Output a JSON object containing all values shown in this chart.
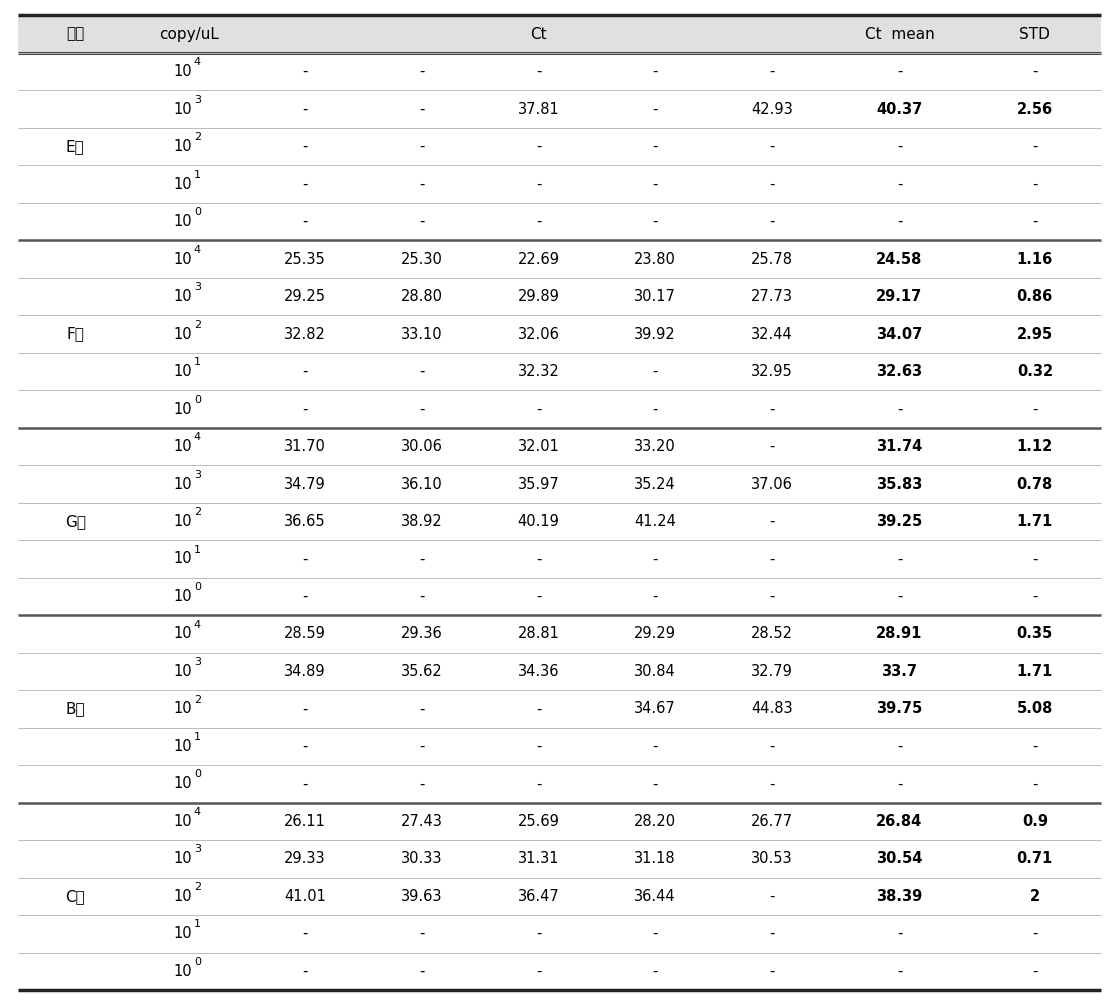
{
  "rows": [
    {
      "company": "E사",
      "copy_base": "10",
      "copy_exp": "4",
      "ct": [
        "-",
        "-",
        "-",
        "-",
        "-"
      ],
      "mean": "-",
      "std": "-",
      "bold": false
    },
    {
      "company": "E사",
      "copy_base": "10",
      "copy_exp": "3",
      "ct": [
        "-",
        "-",
        "37.81",
        "-",
        "42.93"
      ],
      "mean": "40.37",
      "std": "2.56",
      "bold": true
    },
    {
      "company": "E사",
      "copy_base": "10",
      "copy_exp": "2",
      "ct": [
        "-",
        "-",
        "-",
        "-",
        "-"
      ],
      "mean": "-",
      "std": "-",
      "bold": false
    },
    {
      "company": "E사",
      "copy_base": "10",
      "copy_exp": "1",
      "ct": [
        "-",
        "-",
        "-",
        "-",
        "-"
      ],
      "mean": "-",
      "std": "-",
      "bold": false
    },
    {
      "company": "E사",
      "copy_base": "10",
      "copy_exp": "0",
      "ct": [
        "-",
        "-",
        "-",
        "-",
        "-"
      ],
      "mean": "-",
      "std": "-",
      "bold": false
    },
    {
      "company": "F사",
      "copy_base": "10",
      "copy_exp": "4",
      "ct": [
        "25.35",
        "25.30",
        "22.69",
        "23.80",
        "25.78"
      ],
      "mean": "24.58",
      "std": "1.16",
      "bold": true
    },
    {
      "company": "F사",
      "copy_base": "10",
      "copy_exp": "3",
      "ct": [
        "29.25",
        "28.80",
        "29.89",
        "30.17",
        "27.73"
      ],
      "mean": "29.17",
      "std": "0.86",
      "bold": true
    },
    {
      "company": "F사",
      "copy_base": "10",
      "copy_exp": "2",
      "ct": [
        "32.82",
        "33.10",
        "32.06",
        "39.92",
        "32.44"
      ],
      "mean": "34.07",
      "std": "2.95",
      "bold": true
    },
    {
      "company": "F사",
      "copy_base": "10",
      "copy_exp": "1",
      "ct": [
        "-",
        "-",
        "32.32",
        "-",
        "32.95"
      ],
      "mean": "32.63",
      "std": "0.32",
      "bold": true
    },
    {
      "company": "F사",
      "copy_base": "10",
      "copy_exp": "0",
      "ct": [
        "-",
        "-",
        "-",
        "-",
        "-"
      ],
      "mean": "-",
      "std": "-",
      "bold": false
    },
    {
      "company": "G사",
      "copy_base": "10",
      "copy_exp": "4",
      "ct": [
        "31.70",
        "30.06",
        "32.01",
        "33.20",
        "-"
      ],
      "mean": "31.74",
      "std": "1.12",
      "bold": true
    },
    {
      "company": "G사",
      "copy_base": "10",
      "copy_exp": "3",
      "ct": [
        "34.79",
        "36.10",
        "35.97",
        "35.24",
        "37.06"
      ],
      "mean": "35.83",
      "std": "0.78",
      "bold": true
    },
    {
      "company": "G사",
      "copy_base": "10",
      "copy_exp": "2",
      "ct": [
        "36.65",
        "38.92",
        "40.19",
        "41.24",
        "-"
      ],
      "mean": "39.25",
      "std": "1.71",
      "bold": true
    },
    {
      "company": "G사",
      "copy_base": "10",
      "copy_exp": "1",
      "ct": [
        "-",
        "-",
        "-",
        "-",
        "-"
      ],
      "mean": "-",
      "std": "-",
      "bold": false
    },
    {
      "company": "G사",
      "copy_base": "10",
      "copy_exp": "0",
      "ct": [
        "-",
        "-",
        "-",
        "-",
        "-"
      ],
      "mean": "-",
      "std": "-",
      "bold": false
    },
    {
      "company": "B사",
      "copy_base": "10",
      "copy_exp": "4",
      "ct": [
        "28.59",
        "29.36",
        "28.81",
        "29.29",
        "28.52"
      ],
      "mean": "28.91",
      "std": "0.35",
      "bold": true
    },
    {
      "company": "B사",
      "copy_base": "10",
      "copy_exp": "3",
      "ct": [
        "34.89",
        "35.62",
        "34.36",
        "30.84",
        "32.79"
      ],
      "mean": "33.7",
      "std": "1.71",
      "bold": true
    },
    {
      "company": "B사",
      "copy_base": "10",
      "copy_exp": "2",
      "ct": [
        "-",
        "-",
        "-",
        "34.67",
        "44.83"
      ],
      "mean": "39.75",
      "std": "5.08",
      "bold": true
    },
    {
      "company": "B사",
      "copy_base": "10",
      "copy_exp": "1",
      "ct": [
        "-",
        "-",
        "-",
        "-",
        "-"
      ],
      "mean": "-",
      "std": "-",
      "bold": false
    },
    {
      "company": "B사",
      "copy_base": "10",
      "copy_exp": "0",
      "ct": [
        "-",
        "-",
        "-",
        "-",
        "-"
      ],
      "mean": "-",
      "std": "-",
      "bold": false
    },
    {
      "company": "C사",
      "copy_base": "10",
      "copy_exp": "4",
      "ct": [
        "26.11",
        "27.43",
        "25.69",
        "28.20",
        "26.77"
      ],
      "mean": "26.84",
      "std": "0.9",
      "bold": true
    },
    {
      "company": "C사",
      "copy_base": "10",
      "copy_exp": "3",
      "ct": [
        "29.33",
        "30.33",
        "31.31",
        "31.18",
        "30.53"
      ],
      "mean": "30.54",
      "std": "0.71",
      "bold": true
    },
    {
      "company": "C사",
      "copy_base": "10",
      "copy_exp": "2",
      "ct": [
        "41.01",
        "39.63",
        "36.47",
        "36.44",
        "-"
      ],
      "mean": "38.39",
      "std": "2",
      "bold": true
    },
    {
      "company": "C사",
      "copy_base": "10",
      "copy_exp": "1",
      "ct": [
        "-",
        "-",
        "-",
        "-",
        "-"
      ],
      "mean": "-",
      "std": "-",
      "bold": false
    },
    {
      "company": "C사",
      "copy_base": "10",
      "copy_exp": "0",
      "ct": [
        "-",
        "-",
        "-",
        "-",
        "-"
      ],
      "mean": "-",
      "std": "-",
      "bold": false
    }
  ],
  "company_groups": [
    {
      "name": "E사",
      "start": 0,
      "end": 4
    },
    {
      "name": "F사",
      "start": 5,
      "end": 9
    },
    {
      "name": "G사",
      "start": 10,
      "end": 14
    },
    {
      "name": "B사",
      "start": 15,
      "end": 19
    },
    {
      "name": "C사",
      "start": 20,
      "end": 24
    }
  ],
  "header_labels": [
    "회사",
    "copy/uL",
    "Ct",
    "Ct  mean",
    "STD"
  ],
  "header_bg": "#e0e0e0",
  "font_size": 10.5,
  "header_font_size": 11
}
